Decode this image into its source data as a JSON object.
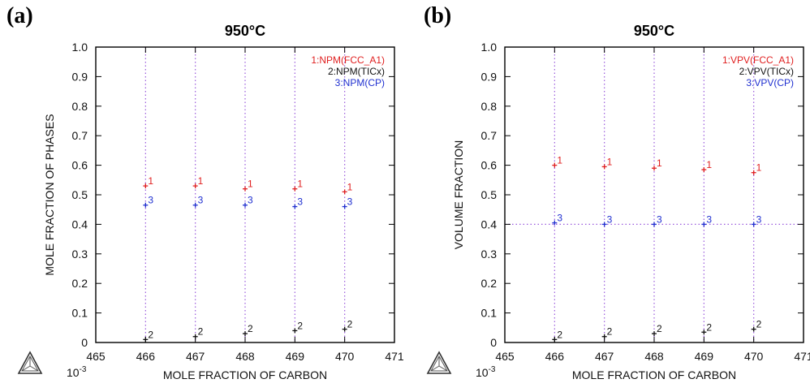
{
  "panels": [
    {
      "letter": "(a)"
    },
    {
      "letter": "(b)"
    }
  ],
  "colors": {
    "series1": "#e02020",
    "series2": "#111111",
    "series3": "#2030d0",
    "grid": "#9a5adc"
  },
  "chart_data": [
    {
      "type": "scatter",
      "title": "950°C",
      "xlabel": "MOLE FRACTION OF CARBON",
      "ylabel": "MOLE FRACTION OF PHASES",
      "x_multiplier_label": "10-3",
      "xlim": [
        465,
        471
      ],
      "ylim": [
        0,
        1.0
      ],
      "x_ticks": [
        465,
        466,
        467,
        468,
        469,
        470,
        471
      ],
      "y_ticks": [
        "0",
        "0.1",
        "0.2",
        "0.3",
        "0.4",
        "0.5",
        "0.6",
        "0.7",
        "0.8",
        "0.9",
        "1.0"
      ],
      "vertical_gridlines_x": [
        466,
        467,
        468,
        469,
        470
      ],
      "horizontal_gridlines_y": [],
      "legend": [
        "1:NPM(FCC_A1)",
        "2:NPM(TICx)",
        "3:NPM(CP)"
      ],
      "series": [
        {
          "label": "1",
          "x": [
            466,
            467,
            468,
            469,
            470
          ],
          "y": [
            0.53,
            0.53,
            0.52,
            0.52,
            0.51
          ]
        },
        {
          "label": "2",
          "x": [
            466,
            467,
            468,
            469,
            470
          ],
          "y": [
            0.01,
            0.02,
            0.03,
            0.04,
            0.045
          ]
        },
        {
          "label": "3",
          "x": [
            466,
            467,
            468,
            469,
            470
          ],
          "y": [
            0.465,
            0.465,
            0.465,
            0.46,
            0.46
          ]
        }
      ]
    },
    {
      "type": "scatter",
      "title": "950°C",
      "xlabel": "MOLE FRACTION OF CARBON",
      "ylabel": "VOLUME FRACTION",
      "x_multiplier_label": "10-3",
      "xlim": [
        465,
        471
      ],
      "ylim": [
        0,
        1.0
      ],
      "x_ticks": [
        465,
        466,
        467,
        468,
        469,
        470,
        471
      ],
      "y_ticks": [
        "0",
        "0.1",
        "0.2",
        "0.3",
        "0.4",
        "0.5",
        "0.6",
        "0.7",
        "0.8",
        "0.9",
        "1.0"
      ],
      "vertical_gridlines_x": [
        466,
        467,
        468,
        469,
        470
      ],
      "horizontal_gridlines_y": [
        0.4
      ],
      "legend": [
        "1:VPV(FCC_A1)",
        "2:VPV(TICx)",
        "3:VPV(CP)"
      ],
      "series": [
        {
          "label": "1",
          "x": [
            466,
            467,
            468,
            469,
            470
          ],
          "y": [
            0.6,
            0.595,
            0.59,
            0.585,
            0.575
          ]
        },
        {
          "label": "2",
          "x": [
            466,
            467,
            468,
            469,
            470
          ],
          "y": [
            0.01,
            0.02,
            0.03,
            0.035,
            0.045
          ]
        },
        {
          "label": "3",
          "x": [
            466,
            467,
            468,
            469,
            470
          ],
          "y": [
            0.405,
            0.4,
            0.4,
            0.4,
            0.4
          ]
        }
      ]
    }
  ]
}
